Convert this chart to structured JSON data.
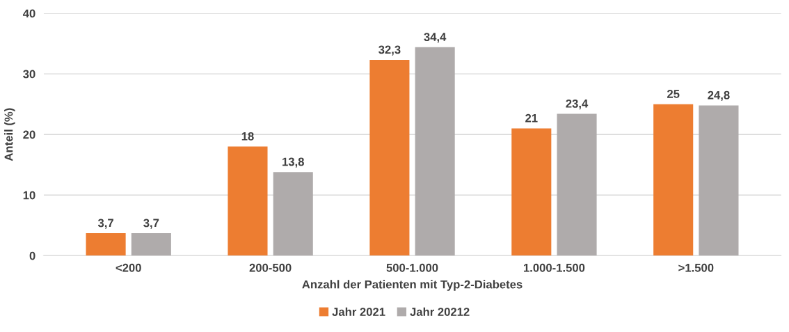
{
  "chart_data": {
    "type": "bar",
    "categories": [
      "<200",
      "200-500",
      "500-1.000",
      "1.000-1.500",
      ">1.500"
    ],
    "xlabel": "Anzahl der Patienten mit Typ-2-Diabetes",
    "ylabel": "Anteil (%)",
    "ylim": [
      0,
      40
    ],
    "yticks": [
      0,
      10,
      20,
      30,
      40
    ],
    "grid": "y",
    "legend": "bottom",
    "series": [
      {
        "name": "Jahr 2021",
        "color": "#ed7d31",
        "values": [
          3.7,
          18,
          32.3,
          21,
          25
        ],
        "value_labels": [
          "3,7",
          "18",
          "32,3",
          "21",
          "25"
        ]
      },
      {
        "name": "Jahr 20212",
        "color": "#afabab",
        "values": [
          3.7,
          13.8,
          34.4,
          23.4,
          24.8
        ],
        "value_labels": [
          "3,7",
          "13,8",
          "34,4",
          "23,4",
          "24,8"
        ]
      }
    ]
  }
}
